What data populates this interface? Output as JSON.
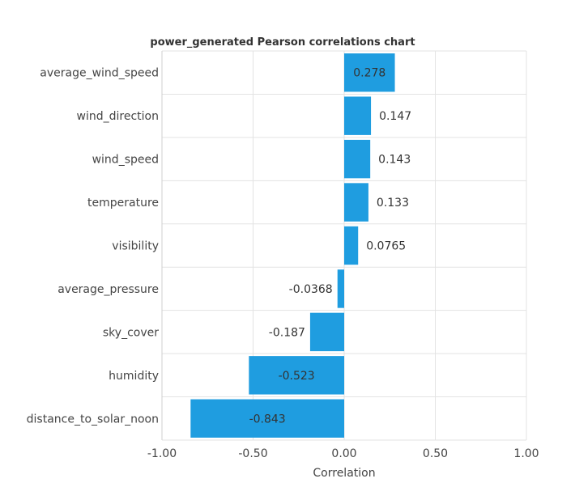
{
  "chart_data": {
    "type": "bar",
    "orientation": "horizontal",
    "title": "power_generated Pearson correlations chart",
    "xlabel": "Correlation",
    "ylabel": "",
    "categories": [
      "average_wind_speed",
      "wind_direction",
      "wind_speed",
      "temperature",
      "visibility",
      "average_pressure",
      "sky_cover",
      "humidity",
      "distance_to_solar_noon"
    ],
    "values": [
      0.278,
      0.147,
      0.143,
      0.133,
      0.0765,
      -0.0368,
      -0.187,
      -0.523,
      -0.843
    ],
    "value_labels": [
      "0.278",
      "0.147",
      "0.143",
      "0.133",
      "0.0765",
      "-0.0368",
      "-0.187",
      "-0.523",
      "-0.843"
    ],
    "xlim": [
      -1.0,
      1.0
    ],
    "xticks": [
      -1.0,
      -0.5,
      0.0,
      0.5,
      1.0
    ],
    "xtick_labels": [
      "-1.00",
      "-0.50",
      "0.00",
      "0.50",
      "1.00"
    ],
    "grid": true,
    "bar_color": "#1f9de0"
  }
}
